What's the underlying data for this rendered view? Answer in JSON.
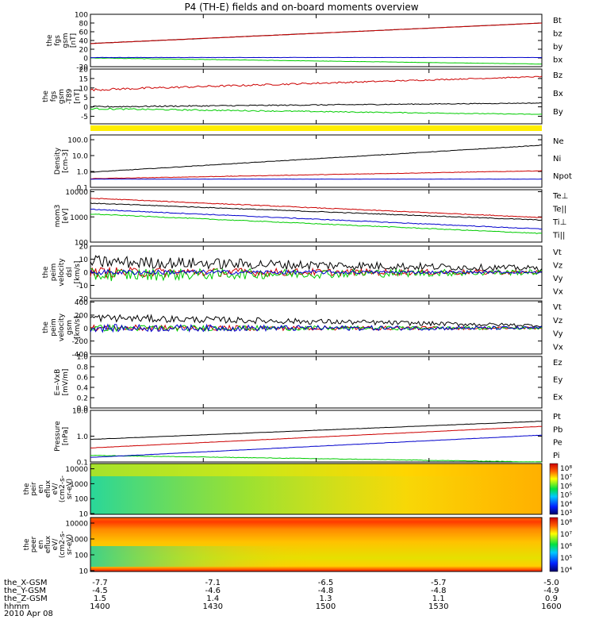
{
  "title": "P4 (TH-E) fields and on-board moments overview",
  "x_tick_labels": [
    {
      "label": "the_X-GSM",
      "values": [
        "-7.7",
        "-7.1",
        "-6.5",
        "-5.7",
        "-5.0"
      ]
    },
    {
      "label": "the_Y-GSM",
      "values": [
        "-4.5",
        "-4.6",
        "-4.8",
        "-4.8",
        "-4.9"
      ]
    },
    {
      "label": "the_Z-GSM",
      "values": [
        "1.5",
        "1.4",
        "1.3",
        "1.1",
        "0.9"
      ]
    },
    {
      "label": "hhmm",
      "values": [
        "1400",
        "1430",
        "1500",
        "1530",
        "1600"
      ]
    }
  ],
  "date_label": "2010 Apr 08",
  "colorbar_labels": [
    [
      "10⁸",
      "10⁷",
      "10⁶",
      "10⁵",
      "10⁴",
      "10³"
    ],
    [
      "10⁸",
      "10⁷",
      "10⁶",
      "10⁵",
      "10⁴"
    ]
  ],
  "colors": {
    "black": "#000000",
    "red": "#cc0000",
    "green": "#00cc00",
    "blue": "#0000cc",
    "yellow_bar": "#ffee00",
    "spec_bg": "#ffd400"
  },
  "chart_data": {
    "type": "line",
    "time_range": [
      "1400",
      "1600"
    ],
    "x_ticks": [
      "1400",
      "1430",
      "1500",
      "1530",
      "1600"
    ],
    "panels": [
      {
        "ylabel": [
          "the",
          "fgs",
          "gsm",
          "[nT]"
        ],
        "yticks": [
          "100",
          "80",
          "60",
          "40",
          "20",
          "0",
          "-20"
        ],
        "ylim": [
          -20,
          100
        ],
        "scale": "linear",
        "series": [
          {
            "name": "Bt",
            "color": "black",
            "start": 33,
            "end": 80,
            "noise": 0.4
          },
          {
            "name": "bz",
            "color": "red",
            "start": 33,
            "end": 80,
            "noise": 0.4
          },
          {
            "name": "by",
            "color": "green",
            "start": 0,
            "end": -14,
            "noise": 0.5
          },
          {
            "name": "bx",
            "color": "blue",
            "start": 1,
            "end": 1,
            "noise": 0.3
          }
        ]
      },
      {
        "ylabel": [
          "the",
          "fgs",
          "gsm",
          "-T89",
          "[nT]"
        ],
        "yticks": [
          "20",
          "15",
          "10",
          "5",
          "0",
          "-5"
        ],
        "ylim": [
          -9,
          20
        ],
        "scale": "linear",
        "series": [
          {
            "name": "Bz",
            "color": "red",
            "start": 9,
            "end": 16,
            "noise": 0.6
          },
          {
            "name": "Bx",
            "color": "black",
            "start": 0,
            "end": 2,
            "noise": 0.4
          },
          {
            "name": "By",
            "color": "green",
            "start": -1,
            "end": -4,
            "noise": 0.4
          }
        ]
      },
      {
        "ylabel": [
          "Density",
          "[cm-3]"
        ],
        "yticks": [
          "100.0",
          "10.0",
          "1.0",
          "0.1"
        ],
        "ylim": [
          0.1,
          200
        ],
        "scale": "log",
        "series": [
          {
            "name": "Ne",
            "color": "red",
            "start": 0.35,
            "end": 1.1,
            "noise": 0.03
          },
          {
            "name": "Ni",
            "color": "black",
            "start": 0.9,
            "end": 45,
            "noise": 0.03
          },
          {
            "name": "Npot",
            "color": "blue",
            "start": 0.33,
            "end": 0.33,
            "noise": 0.01
          }
        ]
      },
      {
        "ylabel": [
          "mom3",
          "[eV]"
        ],
        "yticks": [
          "10000",
          "1000",
          "100"
        ],
        "ylim": [
          100,
          12000
        ],
        "scale": "log",
        "series": [
          {
            "name": "Te⊥",
            "color": "red",
            "start": 5500,
            "end": 950,
            "noise": 0.03
          },
          {
            "name": "Te||",
            "color": "black",
            "start": 3500,
            "end": 750,
            "noise": 0.03
          },
          {
            "name": "Ti⊥",
            "color": "blue",
            "start": 2000,
            "end": 330,
            "noise": 0.03
          },
          {
            "name": "Ti||",
            "color": "green",
            "start": 1300,
            "end": 220,
            "noise": 0.03
          }
        ]
      },
      {
        "ylabel": [
          "the",
          "peim",
          "velocity",
          "dsl",
          "[km/s]"
        ],
        "yticks": [
          "20",
          "10",
          "0",
          "-10",
          "-20"
        ],
        "ylim": [
          -20,
          20
        ],
        "scale": "linear",
        "series": [
          {
            "name": "Vt",
            "color": "black",
            "start": 8,
            "end": 3,
            "noise": 5
          },
          {
            "name": "Vz",
            "color": "red",
            "start": 0,
            "end": 0,
            "noise": 4
          },
          {
            "name": "Vy",
            "color": "green",
            "start": -2,
            "end": 0,
            "noise": 5
          },
          {
            "name": "Vx",
            "color": "blue",
            "start": 0,
            "end": 0,
            "noise": 2
          }
        ]
      },
      {
        "ylabel": [
          "the",
          "peim",
          "velocity",
          "gsm",
          "[km/s]"
        ],
        "yticks": [
          "400",
          "200",
          "0",
          "-200",
          "-400"
        ],
        "ylim": [
          -400,
          420
        ],
        "scale": "linear",
        "series": [
          {
            "name": "Vt",
            "color": "black",
            "start": 160,
            "end": 40,
            "noise": 60
          },
          {
            "name": "Vz",
            "color": "red",
            "start": 0,
            "end": 0,
            "noise": 50
          },
          {
            "name": "Vy",
            "color": "green",
            "start": 0,
            "end": 0,
            "noise": 50
          },
          {
            "name": "Vx",
            "color": "blue",
            "start": 0,
            "end": 0,
            "noise": 60
          }
        ]
      },
      {
        "ylabel": [
          "E=-VxB",
          "[mV/m]"
        ],
        "yticks": [
          "1.0",
          "0.8",
          "0.6",
          "0.4",
          "0.2",
          "0.0"
        ],
        "ylim": [
          0,
          1
        ],
        "scale": "linear",
        "series": [
          {
            "name": "Ez",
            "color": "red"
          },
          {
            "name": "Ey",
            "color": "green"
          },
          {
            "name": "Ex",
            "color": "blue"
          }
        ]
      },
      {
        "ylabel": [
          "Pressure",
          "[nPa]"
        ],
        "yticks": [
          "10.0",
          "1.0",
          "0.1"
        ],
        "ylim": [
          0.1,
          10
        ],
        "scale": "log",
        "series": [
          {
            "name": "Pt",
            "color": "black",
            "start": 0.75,
            "end": 3.8,
            "noise": 0.01
          },
          {
            "name": "Pb",
            "color": "red",
            "start": 0.35,
            "end": 2.4,
            "noise": 0.01
          },
          {
            "name": "Pe",
            "color": "green",
            "start": 0.18,
            "end": 0.1,
            "noise": 0.02
          },
          {
            "name": "Pi",
            "color": "blue",
            "start": 0.15,
            "end": 1.1,
            "noise": 0.01
          }
        ]
      }
    ],
    "spectrograms": [
      {
        "ylabel": [
          "the",
          "peir",
          "en",
          "eflux",
          "eV/",
          "(cm2-s-",
          "sr-eV)"
        ],
        "yticks": [
          "10000",
          "1000",
          "100",
          "10"
        ],
        "colorbar": [
          "10⁸",
          "10⁷",
          "10⁶",
          "10⁵",
          "10⁴",
          "10³"
        ]
      },
      {
        "ylabel": [
          "the",
          "peer",
          "en",
          "eflux",
          "eV/",
          "(cm2-s-",
          "sr-eV)"
        ],
        "yticks": [
          "10000",
          "1000",
          "100",
          "10"
        ],
        "colorbar": [
          "10⁸",
          "10⁷",
          "10⁶",
          "10⁵",
          "10⁴"
        ]
      }
    ]
  }
}
